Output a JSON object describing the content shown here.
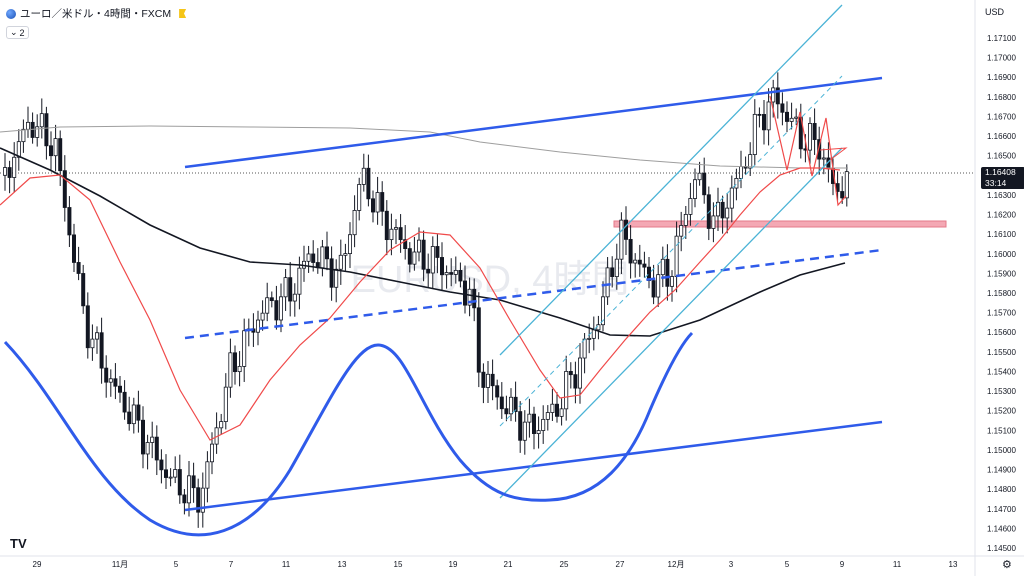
{
  "header": {
    "symbol_title": "ユーロ／米ドル・4時間・FXCM",
    "indicator_count": "2"
  },
  "currency": "USD",
  "watermark": "EURUSD, 4時間",
  "price_axis": {
    "labels": [
      "1.17100",
      "1.17000",
      "1.16900",
      "1.16800",
      "1.16700",
      "1.16600",
      "1.16500",
      "1.16300",
      "1.16200",
      "1.16100",
      "1.16000",
      "1.15900",
      "1.15800",
      "1.15700",
      "1.15600",
      "1.15500",
      "1.15400",
      "1.15300",
      "1.15200",
      "1.15100",
      "1.15000",
      "1.14900",
      "1.14800",
      "1.14700",
      "1.14600",
      "1.14500"
    ]
  },
  "current_price": {
    "value": "1.16408",
    "countdown": "33:14"
  },
  "time_axis": {
    "labels": [
      "29",
      "11月",
      "5",
      "7",
      "11",
      "13",
      "15",
      "19",
      "21",
      "25",
      "27",
      "12月",
      "3",
      "5",
      "9",
      "11",
      "13"
    ]
  },
  "colors": {
    "candle": "#131722",
    "ema_red": "#f04a4a",
    "ma_black": "#131722",
    "ma_gray": "#9e9e9e",
    "trend_blue": "#2f5bea",
    "channel_cyan": "#4bb3d6",
    "zone_pink": "#f4a8b4"
  },
  "icons": {
    "settings": "gear-icon",
    "logo": "tradingview-logo"
  }
}
